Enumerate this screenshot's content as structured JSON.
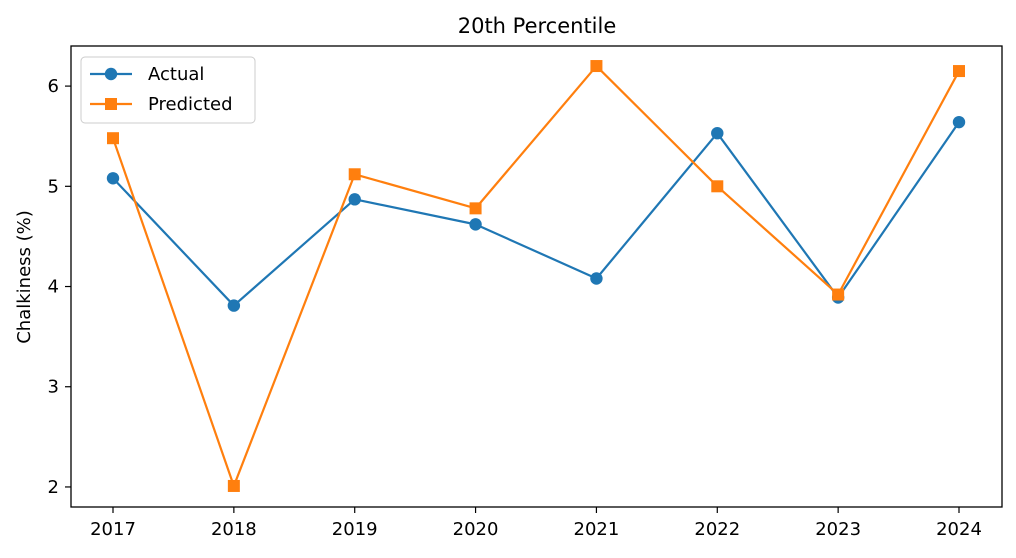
{
  "chart_data": {
    "type": "line",
    "title": "20th Percentile",
    "xlabel": "",
    "ylabel": "Chalkiness (%)",
    "x": [
      "2017",
      "2018",
      "2019",
      "2020",
      "2021",
      "2022",
      "2023",
      "2024"
    ],
    "ylim": [
      1.8,
      6.4
    ],
    "yticks": [
      2,
      3,
      4,
      5,
      6
    ],
    "grid": false,
    "legend_position": "top-left",
    "series": [
      {
        "name": "Actual",
        "color": "#1f77b4",
        "marker": "circle",
        "values": [
          5.08,
          3.81,
          4.87,
          4.62,
          4.08,
          5.53,
          3.89,
          5.64
        ]
      },
      {
        "name": "Predicted",
        "color": "#ff7f0e",
        "marker": "square",
        "values": [
          5.48,
          2.01,
          5.12,
          4.78,
          6.2,
          5.0,
          3.92,
          6.15
        ]
      }
    ]
  }
}
